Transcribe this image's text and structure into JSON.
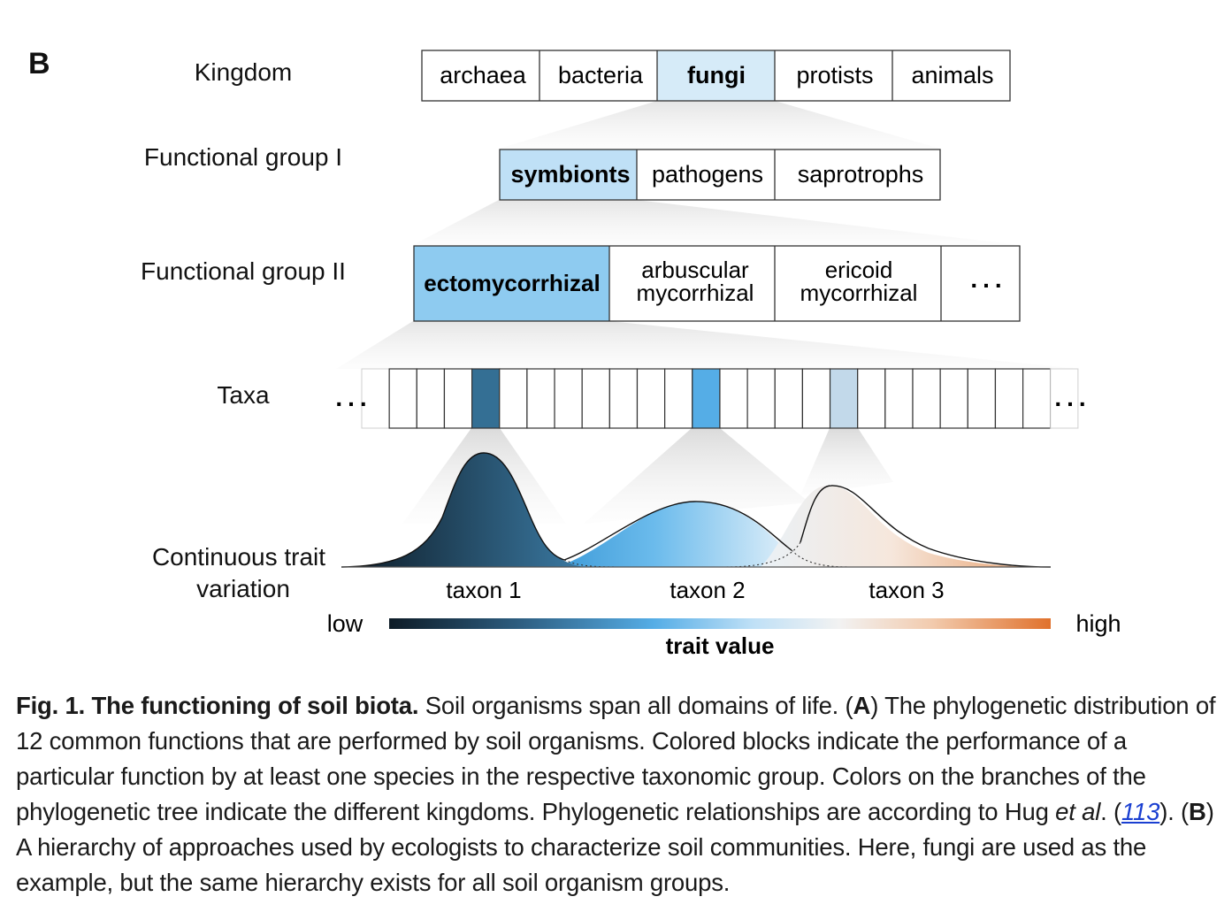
{
  "colors": {
    "fungi": "#d6ebf8",
    "symbionts": "#bfe0f6",
    "ecto": "#8ecbf0",
    "taxon1": "#346f94",
    "taxon2": "#55ade6",
    "taxon3": "#c2d9ea",
    "high": "#e0712c",
    "low": "#0d1b26"
  },
  "panel_label": "B",
  "levels": {
    "kingdom": "Kingdom",
    "fg1": "Functional group I",
    "fg2": "Functional group II",
    "taxa": "Taxa",
    "trait_line1": "Continuous trait",
    "trait_line2": "variation"
  },
  "kingdom_boxes": [
    "archaea",
    "bacteria",
    "fungi",
    "protists",
    "animals"
  ],
  "fg1_boxes": [
    "symbionts",
    "pathogens",
    "saprotrophs"
  ],
  "fg2_boxes": {
    "ecto": "ectomycorrhizal",
    "arb_l1": "arbuscular",
    "arb_l2": "mycorrhizal",
    "eri_l1": "ericoid",
    "eri_l2": "mycorrhizal",
    "more": "..."
  },
  "taxa_ellipsis": "...",
  "taxon_labels": [
    "taxon 1",
    "taxon 2",
    "taxon 3"
  ],
  "scale": {
    "low": "low",
    "high": "high",
    "title": "trait value"
  },
  "caption": {
    "fig": "Fig. 1.",
    "title": "The functioning of soil biota.",
    "s1": " Soil organisms span all domains of life. (",
    "A": "A",
    "s2": ") The phylogenetic distribution of 12 common functions that are performed by soil organisms. Colored blocks indicate the performance of a particular function by at least one species in the respective taxonomic group. Colors on the branches of the phylogenetic tree indicate the different kingdoms. Phylogenetic relationships are according to Hug ",
    "etal": "et al",
    "s3": ". (",
    "ref": "113",
    "s4": "). (",
    "B": "B",
    "s5": ") A hierarchy of approaches used by ecologists to characterize soil communities. Here, fungi are used as the example, but the same hierarchy exists for all soil organism groups."
  }
}
